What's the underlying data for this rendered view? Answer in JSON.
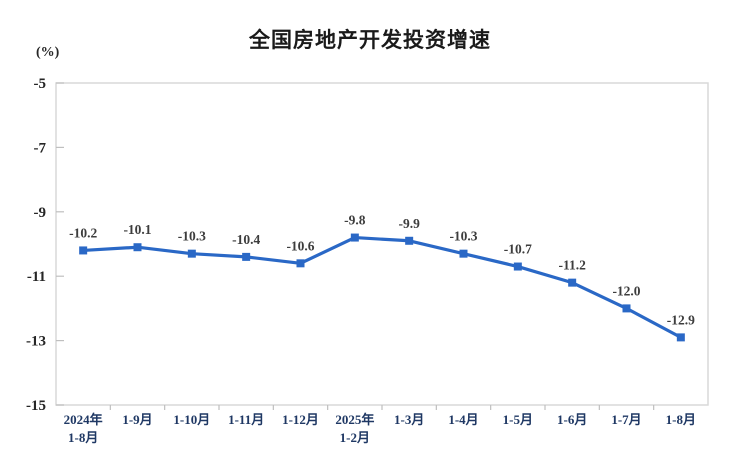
{
  "chart": {
    "title": "全国房地产开发投资增速",
    "y_unit_label": "(%)"
  },
  "chart_data": {
    "type": "line",
    "title": "全国房地产开发投资增速",
    "ylabel": "(%)",
    "xlabel": "",
    "categories": [
      [
        "2024年",
        "1-8月"
      ],
      [
        "1-9月"
      ],
      [
        "1-10月"
      ],
      [
        "1-11月"
      ],
      [
        "1-12月"
      ],
      [
        "2025年",
        "1-2月"
      ],
      [
        "1-3月"
      ],
      [
        "1-4月"
      ],
      [
        "1-5月"
      ],
      [
        "1-6月"
      ],
      [
        "1-7月"
      ],
      [
        "1-8月"
      ]
    ],
    "values": [
      -10.2,
      -10.1,
      -10.3,
      -10.4,
      -10.6,
      -9.8,
      -9.9,
      -10.3,
      -10.7,
      -11.2,
      -12.0,
      -12.9
    ],
    "data_labels": [
      "-10.2",
      "-10.1",
      "-10.3",
      "-10.4",
      "-10.6",
      "-9.8",
      "-9.9",
      "-10.3",
      "-10.7",
      "-11.2",
      "-12.0",
      "-12.9"
    ],
    "ylim": [
      -15,
      -5
    ],
    "yticks": [
      -5,
      -7,
      -9,
      -11,
      -13,
      -15
    ],
    "grid": false,
    "legend": null,
    "line_color": "#2a68c6",
    "marker": "square",
    "colors": {
      "frame": "#d9d9d9",
      "tick": "#bfbfbf",
      "y_tick_label": "#262626",
      "x_axis_label": "#1f3864",
      "data_label": "#3d3d3d",
      "title": "#1a1a1a"
    }
  }
}
